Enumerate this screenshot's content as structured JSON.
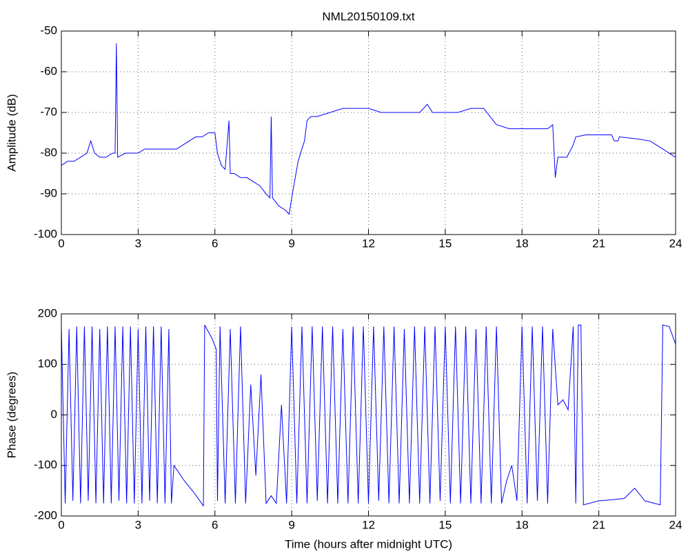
{
  "chart_data": [
    {
      "type": "line",
      "title": "NML20150109.txt",
      "y_label": "Amplitude (dB)",
      "grid": true,
      "xlim": [
        0,
        24
      ],
      "xticks": [
        0,
        3,
        6,
        9,
        12,
        15,
        18,
        21,
        24
      ],
      "ylim": [
        -100,
        -50
      ],
      "yticks": [
        -100,
        -90,
        -80,
        -70,
        -60,
        -50
      ],
      "series": [
        {
          "color": "#0000ff",
          "x": [
            0,
            0.25,
            0.5,
            0.75,
            1.0,
            1.15,
            1.3,
            1.5,
            1.75,
            2.0,
            2.1,
            2.15,
            2.2,
            2.5,
            2.75,
            3.0,
            3.25,
            3.5,
            3.75,
            4.0,
            4.25,
            4.5,
            4.75,
            5.0,
            5.25,
            5.5,
            5.75,
            6.0,
            6.1,
            6.25,
            6.4,
            6.55,
            6.6,
            6.75,
            7.0,
            7.25,
            7.5,
            7.75,
            8.0,
            8.15,
            8.2,
            8.25,
            8.5,
            8.75,
            8.9,
            9.0,
            9.25,
            9.5,
            9.6,
            9.75,
            10.0,
            10.5,
            11.0,
            11.5,
            12.0,
            12.5,
            13.0,
            13.5,
            14.0,
            14.3,
            14.5,
            15.0,
            15.5,
            16.0,
            16.5,
            16.75,
            17.0,
            17.5,
            18.0,
            18.5,
            19.0,
            19.2,
            19.3,
            19.4,
            19.75,
            20.0,
            20.1,
            20.5,
            21.0,
            21.5,
            21.6,
            21.75,
            21.8,
            22.5,
            23.0,
            23.5,
            24.0
          ],
          "values": [
            -83,
            -82,
            -82,
            -81,
            -80,
            -77,
            -80,
            -81,
            -81,
            -80,
            -80,
            -53,
            -81,
            -80,
            -80,
            -80,
            -79,
            -79,
            -79,
            -79,
            -79,
            -79,
            -78,
            -77,
            -76,
            -76,
            -75,
            -75,
            -80,
            -83,
            -84,
            -72,
            -85,
            -85,
            -86,
            -86,
            -87,
            -88,
            -90,
            -91,
            -71,
            -91,
            -93,
            -94,
            -95,
            -91,
            -82,
            -77,
            -72,
            -71,
            -71,
            -70,
            -69,
            -69,
            -69,
            -70,
            -70,
            -70,
            -70,
            -68,
            -70,
            -70,
            -70,
            -69,
            -69,
            -71,
            -73,
            -74,
            -74,
            -74,
            -74,
            -73,
            -86,
            -81,
            -81,
            -78,
            -76,
            -75.5,
            -75.5,
            -75.5,
            -77,
            -77,
            -76,
            -76.5,
            -77,
            -79,
            -81
          ]
        }
      ]
    },
    {
      "type": "line",
      "x_label": "Time (hours after midnight UTC)",
      "y_label": "Phase (degrees)",
      "grid": true,
      "xlim": [
        0,
        24
      ],
      "xticks": [
        0,
        3,
        6,
        9,
        12,
        15,
        18,
        21,
        24
      ],
      "ylim": [
        -200,
        200
      ],
      "yticks": [
        -200,
        -100,
        0,
        100,
        200
      ],
      "series": [
        {
          "color": "#0000ff",
          "x": [
            0,
            0.15,
            0.3,
            0.45,
            0.6,
            0.75,
            0.9,
            1.05,
            1.2,
            1.35,
            1.5,
            1.65,
            1.8,
            1.95,
            2.1,
            2.25,
            2.4,
            2.55,
            2.7,
            2.85,
            3.0,
            3.15,
            3.3,
            3.45,
            3.6,
            3.75,
            3.9,
            4.05,
            4.2,
            4.3,
            4.4,
            4.8,
            5.2,
            5.55,
            5.6,
            5.9,
            6.05,
            6.1,
            6.2,
            6.4,
            6.6,
            6.8,
            7.0,
            7.2,
            7.4,
            7.6,
            7.8,
            8.0,
            8.2,
            8.4,
            8.6,
            8.8,
            9.0,
            9.2,
            9.4,
            9.6,
            9.8,
            10.0,
            10.2,
            10.4,
            10.6,
            10.8,
            11.0,
            11.2,
            11.4,
            11.6,
            11.8,
            12.0,
            12.2,
            12.4,
            12.6,
            12.8,
            13.0,
            13.2,
            13.4,
            13.6,
            13.8,
            14.0,
            14.2,
            14.4,
            14.6,
            14.8,
            15.0,
            15.2,
            15.4,
            15.6,
            15.8,
            16.0,
            16.2,
            16.4,
            16.6,
            16.8,
            17.0,
            17.2,
            17.4,
            17.6,
            17.8,
            18.0,
            18.2,
            18.4,
            18.6,
            18.8,
            19.0,
            19.2,
            19.4,
            19.6,
            19.8,
            20.0,
            20.1,
            20.2,
            20.3,
            20.4,
            21.0,
            21.5,
            22.0,
            22.4,
            22.8,
            23.4,
            23.5,
            23.75,
            24.0
          ],
          "values": [
            175,
            -175,
            170,
            -170,
            175,
            -175,
            175,
            -170,
            175,
            -175,
            170,
            -175,
            175,
            -175,
            175,
            -170,
            175,
            -175,
            175,
            -175,
            170,
            -175,
            175,
            -170,
            175,
            -175,
            175,
            -175,
            170,
            -175,
            -100,
            -130,
            -155,
            -180,
            178,
            150,
            130,
            -170,
            175,
            -175,
            170,
            -175,
            175,
            -175,
            60,
            -120,
            80,
            -175,
            -160,
            -175,
            20,
            -175,
            175,
            -175,
            175,
            -175,
            175,
            -170,
            175,
            -175,
            175,
            -175,
            170,
            -175,
            175,
            -175,
            175,
            -175,
            175,
            -170,
            175,
            -175,
            175,
            -175,
            170,
            -175,
            175,
            -175,
            175,
            -175,
            175,
            -170,
            175,
            -175,
            175,
            -175,
            175,
            -175,
            170,
            -175,
            175,
            -175,
            175,
            -175,
            -130,
            -100,
            -170,
            175,
            -175,
            175,
            -170,
            175,
            -175,
            170,
            20,
            30,
            10,
            175,
            -175,
            178,
            178,
            -178,
            -170,
            -168,
            -165,
            -145,
            -170,
            -178,
            178,
            175,
            140
          ]
        }
      ]
    }
  ]
}
